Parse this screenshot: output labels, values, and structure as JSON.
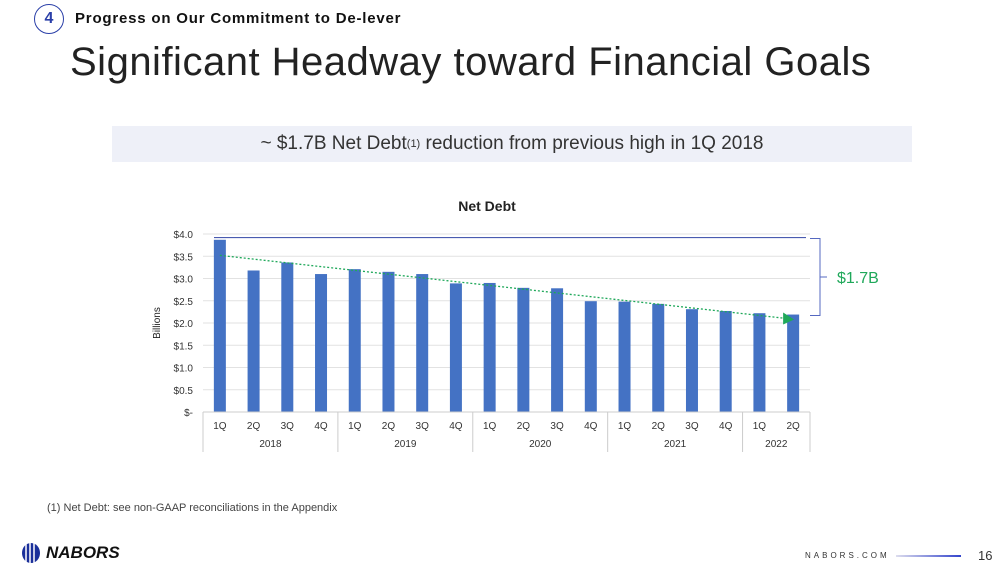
{
  "header": {
    "section_number": "4",
    "section_title": "Progress on Our Commitment to De-lever",
    "title": "Significant Headway toward Financial Goals"
  },
  "banner": {
    "text_before": "~ $1.7B Net Debt",
    "superscript": "(1)",
    "text_after": " reduction from previous high in 1Q 2018"
  },
  "chart_data": {
    "type": "bar",
    "title": "Net Debt",
    "ylabel": "Billions",
    "xlabel": "",
    "ylim": [
      0,
      4.0
    ],
    "yticks": [
      "$-",
      "$0.5",
      "$1.0",
      "$1.5",
      "$2.0",
      "$2.5",
      "$3.0",
      "$3.5",
      "$4.0"
    ],
    "categories": [
      "1Q",
      "2Q",
      "3Q",
      "4Q",
      "1Q",
      "2Q",
      "3Q",
      "4Q",
      "1Q",
      "2Q",
      "3Q",
      "4Q",
      "1Q",
      "2Q",
      "3Q",
      "4Q",
      "1Q",
      "2Q"
    ],
    "groups": [
      {
        "label": "2018",
        "count": 4
      },
      {
        "label": "2019",
        "count": 4
      },
      {
        "label": "2020",
        "count": 4
      },
      {
        "label": "2021",
        "count": 4
      },
      {
        "label": "2022",
        "count": 2
      }
    ],
    "values": [
      3.87,
      3.18,
      3.36,
      3.1,
      3.21,
      3.15,
      3.1,
      2.89,
      2.9,
      2.79,
      2.78,
      2.49,
      2.48,
      2.43,
      2.31,
      2.27,
      2.22,
      2.19
    ],
    "reference_line": 3.92,
    "trend": {
      "start": 3.52,
      "end": 2.1
    },
    "annotation": "$1.7B",
    "grid": true,
    "colors": {
      "bar": "#4472c4",
      "trend": "#1fa85a",
      "reference": "#4a5bb0",
      "annotation": "#1fa85a"
    }
  },
  "footnote": "(1) Net Debt: see non-GAAP reconciliations in the Appendix",
  "footer": {
    "logo": "NABORS",
    "site": "NABORS.COM",
    "page": "16"
  }
}
